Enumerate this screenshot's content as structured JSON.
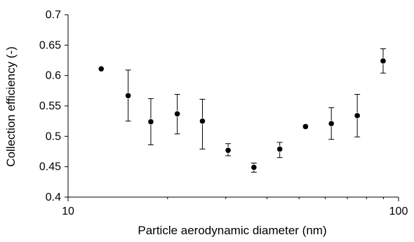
{
  "chart_data": {
    "type": "scatter",
    "title": "",
    "xlabel": "Particle aerodynamic diameter (nm)",
    "ylabel": "Collection efficiency (-)",
    "x_scale": "log",
    "xlim": [
      10,
      100
    ],
    "ylim": [
      0.4,
      0.7
    ],
    "x_ticks": [
      10,
      100
    ],
    "x_tick_labels": [
      "10",
      "100"
    ],
    "y_ticks": [
      0.4,
      0.45,
      0.5,
      0.55,
      0.6,
      0.65,
      0.7
    ],
    "y_tick_labels": [
      "0.4",
      "0.45",
      "0.5",
      "0.55",
      "0.6",
      "0.65",
      "0.7"
    ],
    "grid": false,
    "legend": "none",
    "marker_color": "#000000",
    "series": [
      {
        "points": [
          {
            "x": 12.6,
            "y": 0.611,
            "err_low": 0.611,
            "err_high": 0.611
          },
          {
            "x": 15.2,
            "y": 0.567,
            "err_low": 0.525,
            "err_high": 0.609
          },
          {
            "x": 17.8,
            "y": 0.524,
            "err_low": 0.486,
            "err_high": 0.562
          },
          {
            "x": 21.4,
            "y": 0.537,
            "err_low": 0.504,
            "err_high": 0.569
          },
          {
            "x": 25.5,
            "y": 0.525,
            "err_low": 0.479,
            "err_high": 0.561
          },
          {
            "x": 30.5,
            "y": 0.477,
            "err_low": 0.468,
            "err_high": 0.488
          },
          {
            "x": 36.5,
            "y": 0.449,
            "err_low": 0.441,
            "err_high": 0.456
          },
          {
            "x": 43.7,
            "y": 0.479,
            "err_low": 0.465,
            "err_high": 0.49
          },
          {
            "x": 52.3,
            "y": 0.516,
            "err_low": 0.513,
            "err_high": 0.519
          },
          {
            "x": 62.6,
            "y": 0.521,
            "err_low": 0.495,
            "err_high": 0.547
          },
          {
            "x": 75.0,
            "y": 0.534,
            "err_low": 0.499,
            "err_high": 0.569
          },
          {
            "x": 89.8,
            "y": 0.624,
            "err_low": 0.604,
            "err_high": 0.644
          }
        ]
      }
    ]
  }
}
